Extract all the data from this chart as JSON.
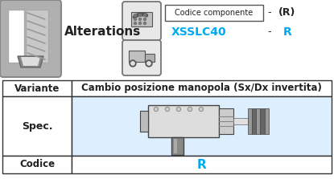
{
  "bg_color": "#ffffff",
  "header": {
    "alterations_text": "Alterations",
    "codice_label": "Codice componente",
    "dash1": "-",
    "paren_R": "(R)",
    "code_value": "XSSLC40",
    "dash2": "-",
    "code_R": "R",
    "text_color_black": "#222222",
    "text_color_blue": "#00aaee"
  },
  "table": {
    "col1_label": "Variante",
    "col2_label": "Cambio posizione manopola (Sx/Dx invertita)",
    "row1_label": "Spec.",
    "row2_label": "Codice",
    "row2_value": "R",
    "header_bg": "#ffffff",
    "spec_bg": "#ddeeff",
    "codice_bg": "#ffffff",
    "border_color": "#333333",
    "text_color_blue": "#00aaee",
    "text_color_black": "#222222"
  }
}
